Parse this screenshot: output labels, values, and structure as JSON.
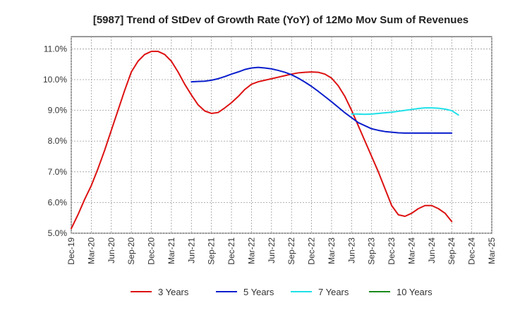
{
  "chart_data": {
    "type": "line",
    "title": "[5987]  Trend of StDev of Growth Rate (YoY) of 12Mo Mov Sum of Revenues",
    "xlabel": "",
    "ylabel": "",
    "ylim": [
      5.0,
      11.4
    ],
    "x_ticks": [
      "Dec-19",
      "Mar-20",
      "Jun-20",
      "Sep-20",
      "Dec-20",
      "Mar-21",
      "Jun-21",
      "Sep-21",
      "Dec-21",
      "Mar-22",
      "Jun-22",
      "Sep-22",
      "Dec-22",
      "Mar-23",
      "Jun-23",
      "Sep-23",
      "Dec-23",
      "Mar-24",
      "Jun-24",
      "Sep-24",
      "Dec-24",
      "Mar-25"
    ],
    "y_ticks": [
      {
        "value": 5.0,
        "label": "5.0%"
      },
      {
        "value": 6.0,
        "label": "6.0%"
      },
      {
        "value": 7.0,
        "label": "7.0%"
      },
      {
        "value": 8.0,
        "label": "8.0%"
      },
      {
        "value": 9.0,
        "label": "9.0%"
      },
      {
        "value": 10.0,
        "label": "10.0%"
      },
      {
        "value": 11.0,
        "label": "11.0%"
      }
    ],
    "grid": true,
    "legend_position": "bottom",
    "series": [
      {
        "name": "3 Years",
        "color": "#dd1111",
        "start_index": 0,
        "values": [
          5.15,
          5.6,
          6.1,
          6.55,
          7.1,
          7.7,
          8.35,
          9.0,
          9.65,
          10.25,
          10.6,
          10.82,
          10.92,
          10.92,
          10.82,
          10.6,
          10.25,
          9.85,
          9.5,
          9.18,
          8.98,
          8.9,
          8.93,
          9.08,
          9.25,
          9.45,
          9.68,
          9.85,
          9.93,
          9.98,
          10.03,
          10.08,
          10.13,
          10.18,
          10.22,
          10.24,
          10.25,
          10.24,
          10.18,
          10.05,
          9.8,
          9.45,
          9.0,
          8.5,
          8.0,
          7.5,
          7.0,
          6.45,
          5.9,
          5.6,
          5.55,
          5.65,
          5.8,
          5.9,
          5.9,
          5.8,
          5.65,
          5.38
        ]
      },
      {
        "name": "5 Years",
        "color": "#0a1ecc",
        "start_index": 18,
        "values": [
          9.93,
          9.94,
          9.95,
          9.98,
          10.03,
          10.1,
          10.18,
          10.25,
          10.33,
          10.38,
          10.4,
          10.38,
          10.35,
          10.3,
          10.24,
          10.16,
          10.05,
          9.92,
          9.78,
          9.62,
          9.45,
          9.28,
          9.1,
          8.92,
          8.76,
          8.6,
          8.5,
          8.4,
          8.35,
          8.31,
          8.29,
          8.27,
          8.26,
          8.26,
          8.26,
          8.26,
          8.26,
          8.26,
          8.26,
          8.26
        ]
      },
      {
        "name": "7 Years",
        "color": "#1de0e8",
        "start_index": 42,
        "values": [
          8.88,
          8.88,
          8.87,
          8.88,
          8.9,
          8.92,
          8.94,
          8.97,
          9.0,
          9.03,
          9.06,
          9.08,
          9.08,
          9.07,
          9.04,
          8.99,
          8.85
        ]
      },
      {
        "name": "10 Years",
        "color": "#1a8a1a",
        "start_index": 0,
        "values": []
      }
    ]
  }
}
